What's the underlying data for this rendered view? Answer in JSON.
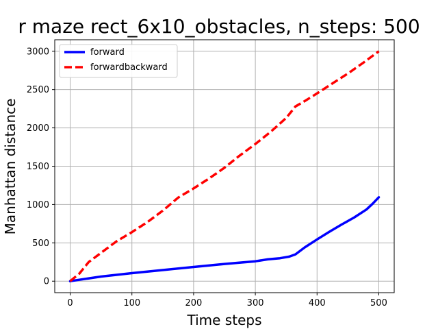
{
  "chart_data": {
    "type": "line",
    "title": "r maze rect_6x10_obstacles, n_steps: 500",
    "xlabel": "Time steps",
    "ylabel": "Manhattan distance",
    "xlim": [
      -25,
      525
    ],
    "ylim": [
      -150,
      3150
    ],
    "xticks": [
      0,
      100,
      200,
      300,
      400,
      500
    ],
    "yticks": [
      0,
      500,
      1000,
      1500,
      2000,
      2500,
      3000
    ],
    "grid": true,
    "legend_position": "top-left",
    "series": [
      {
        "name": "forward",
        "color": "#0000ff",
        "style": "solid",
        "x": [
          0,
          50,
          100,
          150,
          200,
          250,
          300,
          320,
          340,
          355,
          365,
          380,
          400,
          420,
          440,
          460,
          480,
          490,
          500
        ],
        "y": [
          0,
          60,
          105,
          145,
          185,
          225,
          260,
          285,
          300,
          320,
          350,
          440,
          545,
          645,
          740,
          830,
          935,
          1010,
          1095
        ]
      },
      {
        "name": "forwardbackward",
        "color": "#ff0000",
        "style": "dashed",
        "x": [
          0,
          15,
          30,
          50,
          75,
          100,
          125,
          150,
          175,
          200,
          225,
          250,
          275,
          300,
          325,
          350,
          365,
          380,
          400,
          425,
          450,
          475,
          500
        ],
        "y": [
          0,
          100,
          250,
          370,
          520,
          640,
          770,
          920,
          1090,
          1210,
          1340,
          1480,
          1640,
          1790,
          1950,
          2130,
          2280,
          2350,
          2450,
          2580,
          2710,
          2850,
          3000
        ]
      }
    ]
  }
}
